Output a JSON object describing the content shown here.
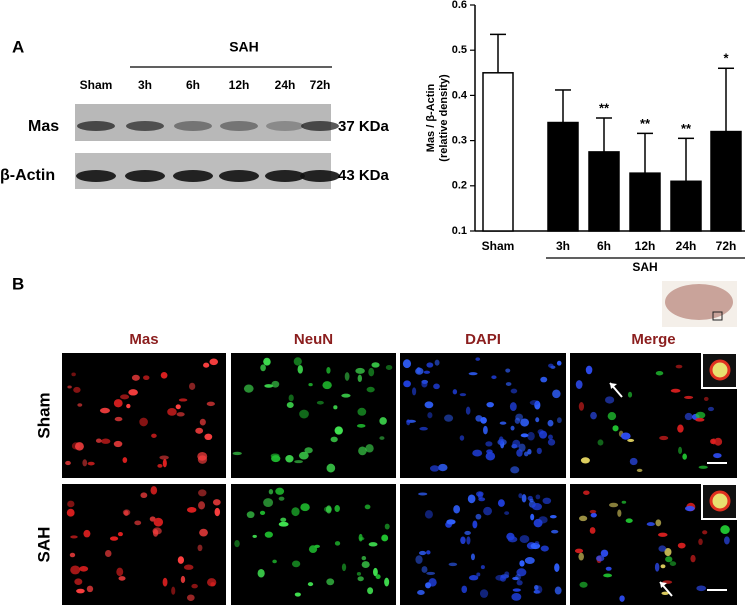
{
  "panel_a": {
    "label": "A",
    "group_label": "SAH",
    "lanes": [
      "Sham",
      "3h",
      "6h",
      "12h",
      "24h",
      "72h"
    ],
    "rows": [
      {
        "name": "Mas",
        "size": "37 KDa"
      },
      {
        "name": "β-Actin",
        "size": "43 KDa"
      }
    ]
  },
  "chart_data": {
    "type": "bar",
    "y_label": [
      "Mas / β-Actin",
      "(relative density)"
    ],
    "categories": [
      "Sham",
      "3h",
      "6h",
      "12h",
      "24h",
      "72h"
    ],
    "group_label": "SAH",
    "values": [
      0.45,
      0.34,
      0.275,
      0.228,
      0.21,
      0.32
    ],
    "errors": [
      0.085,
      0.072,
      0.075,
      0.088,
      0.095,
      0.14
    ],
    "significance": [
      null,
      null,
      "**",
      "**",
      "**",
      "*"
    ],
    "colors": [
      "#ffffff",
      "#000000",
      "#000000",
      "#000000",
      "#000000",
      "#000000"
    ],
    "ylim": [
      0.1,
      0.6
    ],
    "yticks": [
      0.1,
      0.2,
      0.3,
      0.4,
      0.5,
      0.6
    ]
  },
  "panel_b": {
    "label": "B",
    "columns": [
      "Mas",
      "NeuN",
      "DAPI",
      "Merge"
    ],
    "rows": [
      "Sham",
      "SAH"
    ]
  }
}
